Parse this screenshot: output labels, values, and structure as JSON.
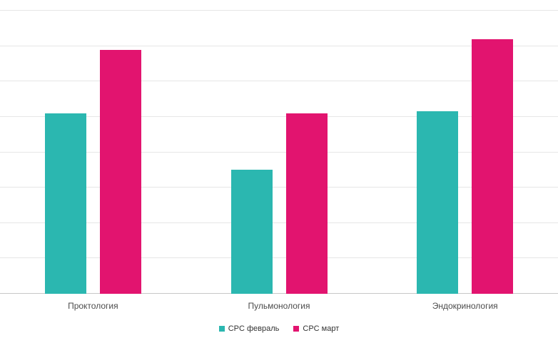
{
  "chart_data": {
    "type": "bar",
    "title": "",
    "xlabel": "",
    "ylabel": "",
    "categories": [
      "Проктология",
      "Пульмонология",
      "Эндокринология"
    ],
    "series": [
      {
        "name": "CPC февраль",
        "color": "#2bb7b0",
        "values": [
          5.1,
          3.5,
          5.15
        ]
      },
      {
        "name": "CPC март",
        "color": "#e2146f",
        "values": [
          6.9,
          5.1,
          7.2
        ]
      }
    ],
    "ylim": [
      0,
      8
    ],
    "grid_step": 1,
    "grid": true,
    "legend_position": "bottom",
    "colors": {
      "grid": "#e6e6e6",
      "axis": "#c8c8c8",
      "label_text": "#4c4c4c",
      "legend_text": "#333333",
      "background": "#ffffff"
    }
  }
}
